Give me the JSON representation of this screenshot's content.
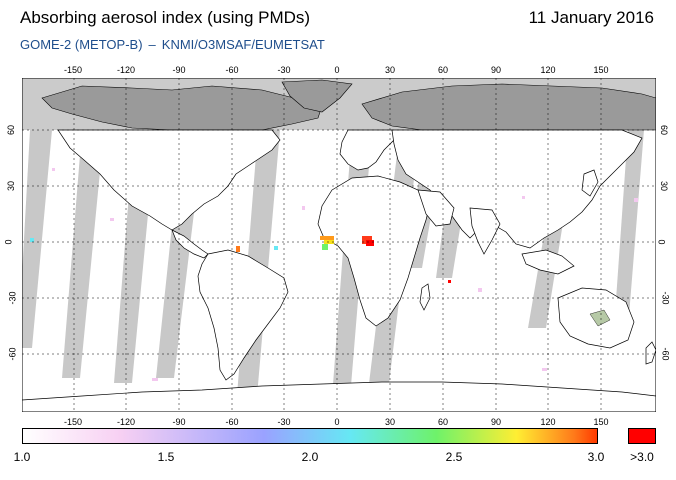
{
  "header": {
    "title": "Absorbing aerosol index (using PMDs)",
    "date": "11 January 2016",
    "instrument": "GOME-2 (METOP-B)",
    "separator": "–",
    "source": "KNMI/O3MSAF/EUMETSAT"
  },
  "map": {
    "lon_ticks": [
      "-150",
      "-120",
      "-90",
      "-60",
      "-30",
      "0",
      "30",
      "60",
      "90",
      "120",
      "150"
    ],
    "lat_ticks": [
      "60",
      "30",
      "0",
      "-30",
      "-60"
    ],
    "colors": {
      "ocean": "#ffffff",
      "no_data": "#bebebe",
      "land_no_data": "#9a9a9a",
      "coast": "#000000"
    }
  },
  "colorbar": {
    "labels": [
      "1.0",
      "1.5",
      "2.0",
      "2.5",
      "3.0",
      ">3.0"
    ],
    "colors": [
      "#ffffff",
      "#f7d0f3",
      "#9aa2ff",
      "#66e8f4",
      "#6ef26a",
      "#ffee33",
      "#ff7a1a",
      "#ff0000"
    ],
    "over_label": ">3.0"
  }
}
